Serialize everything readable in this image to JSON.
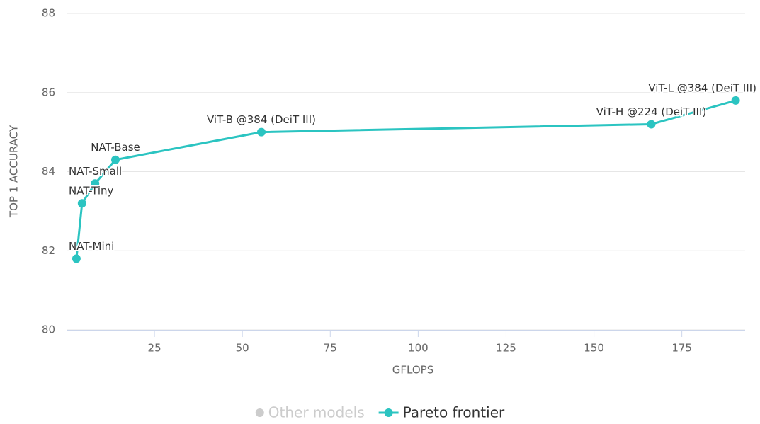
{
  "chart_data": {
    "type": "line",
    "xlabel": "GFLOPS",
    "ylabel": "TOP 1 ACCURACY",
    "xlim": [
      0,
      193
    ],
    "xticks": [
      25,
      50,
      75,
      100,
      125,
      150,
      175
    ],
    "ylim": [
      80,
      88
    ],
    "yticks": [
      80,
      82,
      84,
      86,
      88
    ],
    "grid": true,
    "legend": "bottom",
    "series": [
      {
        "name": "Other models",
        "color": "#cccccc",
        "visible": false,
        "x": [],
        "values": []
      },
      {
        "name": "Pareto frontier",
        "color": "#2bc4c1",
        "visible": true,
        "x": [
          2.8,
          4.4,
          8.1,
          13.9,
          55.4,
          166.3,
          190.3
        ],
        "values": [
          81.8,
          83.2,
          83.7,
          84.3,
          85.0,
          85.2,
          85.8
        ],
        "labels": [
          "NAT-Mini",
          "NAT-Tiny",
          "NAT-Small",
          "NAT-Base",
          "ViT-B @384 (DeiT III)",
          "ViT-H @224 (DeiT III)",
          "ViT-L @384 (DeiT III)"
        ]
      }
    ]
  }
}
